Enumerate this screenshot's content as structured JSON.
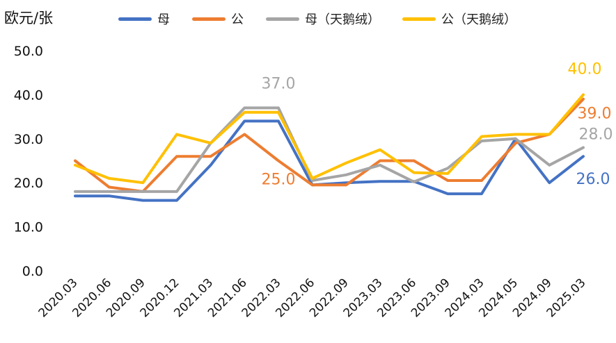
{
  "chart_data": {
    "type": "line",
    "ylabel": "欧元/张",
    "xlabel": "",
    "ylim": [
      0,
      50
    ],
    "yticks": [
      "0.0",
      "10.0",
      "20.0",
      "30.0",
      "40.0",
      "50.0"
    ],
    "categories": [
      "2020.03",
      "2020.06",
      "2020.09",
      "2020.12",
      "2021.03",
      "2021.06",
      "2022.03",
      "2022.06",
      "2022.09",
      "2023.03",
      "2023.06",
      "2023.09",
      "2024.03",
      "2024.05",
      "2024.09",
      "2025.03"
    ],
    "legend_position": "top",
    "grid": false,
    "series": [
      {
        "name": "母",
        "color": "#4472C4",
        "values": [
          17,
          17,
          16,
          16,
          24,
          34,
          34,
          19.5,
          20,
          20.3,
          20.3,
          17.5,
          17.5,
          30,
          20,
          26
        ]
      },
      {
        "name": "公",
        "color": "#ED7D31",
        "values": [
          25,
          19,
          18,
          26,
          26,
          31,
          25,
          19.5,
          19.5,
          25,
          25,
          20.5,
          20.5,
          29,
          31,
          39
        ]
      },
      {
        "name": "母（天鹅绒）",
        "color": "#A5A5A5",
        "values": [
          18,
          18,
          18,
          18,
          29,
          37,
          37,
          20.5,
          21.8,
          24,
          20.2,
          23.3,
          29.5,
          30,
          24,
          28
        ]
      },
      {
        "name": "公（天鹅绒）",
        "color": "#FFC000",
        "values": [
          24,
          21,
          20,
          31,
          29,
          36,
          36,
          21,
          24.5,
          27.5,
          22.3,
          22.1,
          30.5,
          31,
          31,
          40
        ]
      }
    ],
    "annotations": [
      {
        "text": "37.0",
        "series": 2,
        "index": 6,
        "color": "#A5A5A5"
      },
      {
        "text": "25.0",
        "series": 1,
        "index": 6,
        "color": "#ED7D31"
      },
      {
        "text": "40.0",
        "series": 3,
        "index": 15,
        "color": "#FFC000"
      },
      {
        "text": "39.0",
        "series": 1,
        "index": 15,
        "color": "#ED7D31"
      },
      {
        "text": "28.0",
        "series": 2,
        "index": 15,
        "color": "#A5A5A5"
      },
      {
        "text": "26.0",
        "series": 0,
        "index": 15,
        "color": "#4472C4"
      }
    ]
  }
}
